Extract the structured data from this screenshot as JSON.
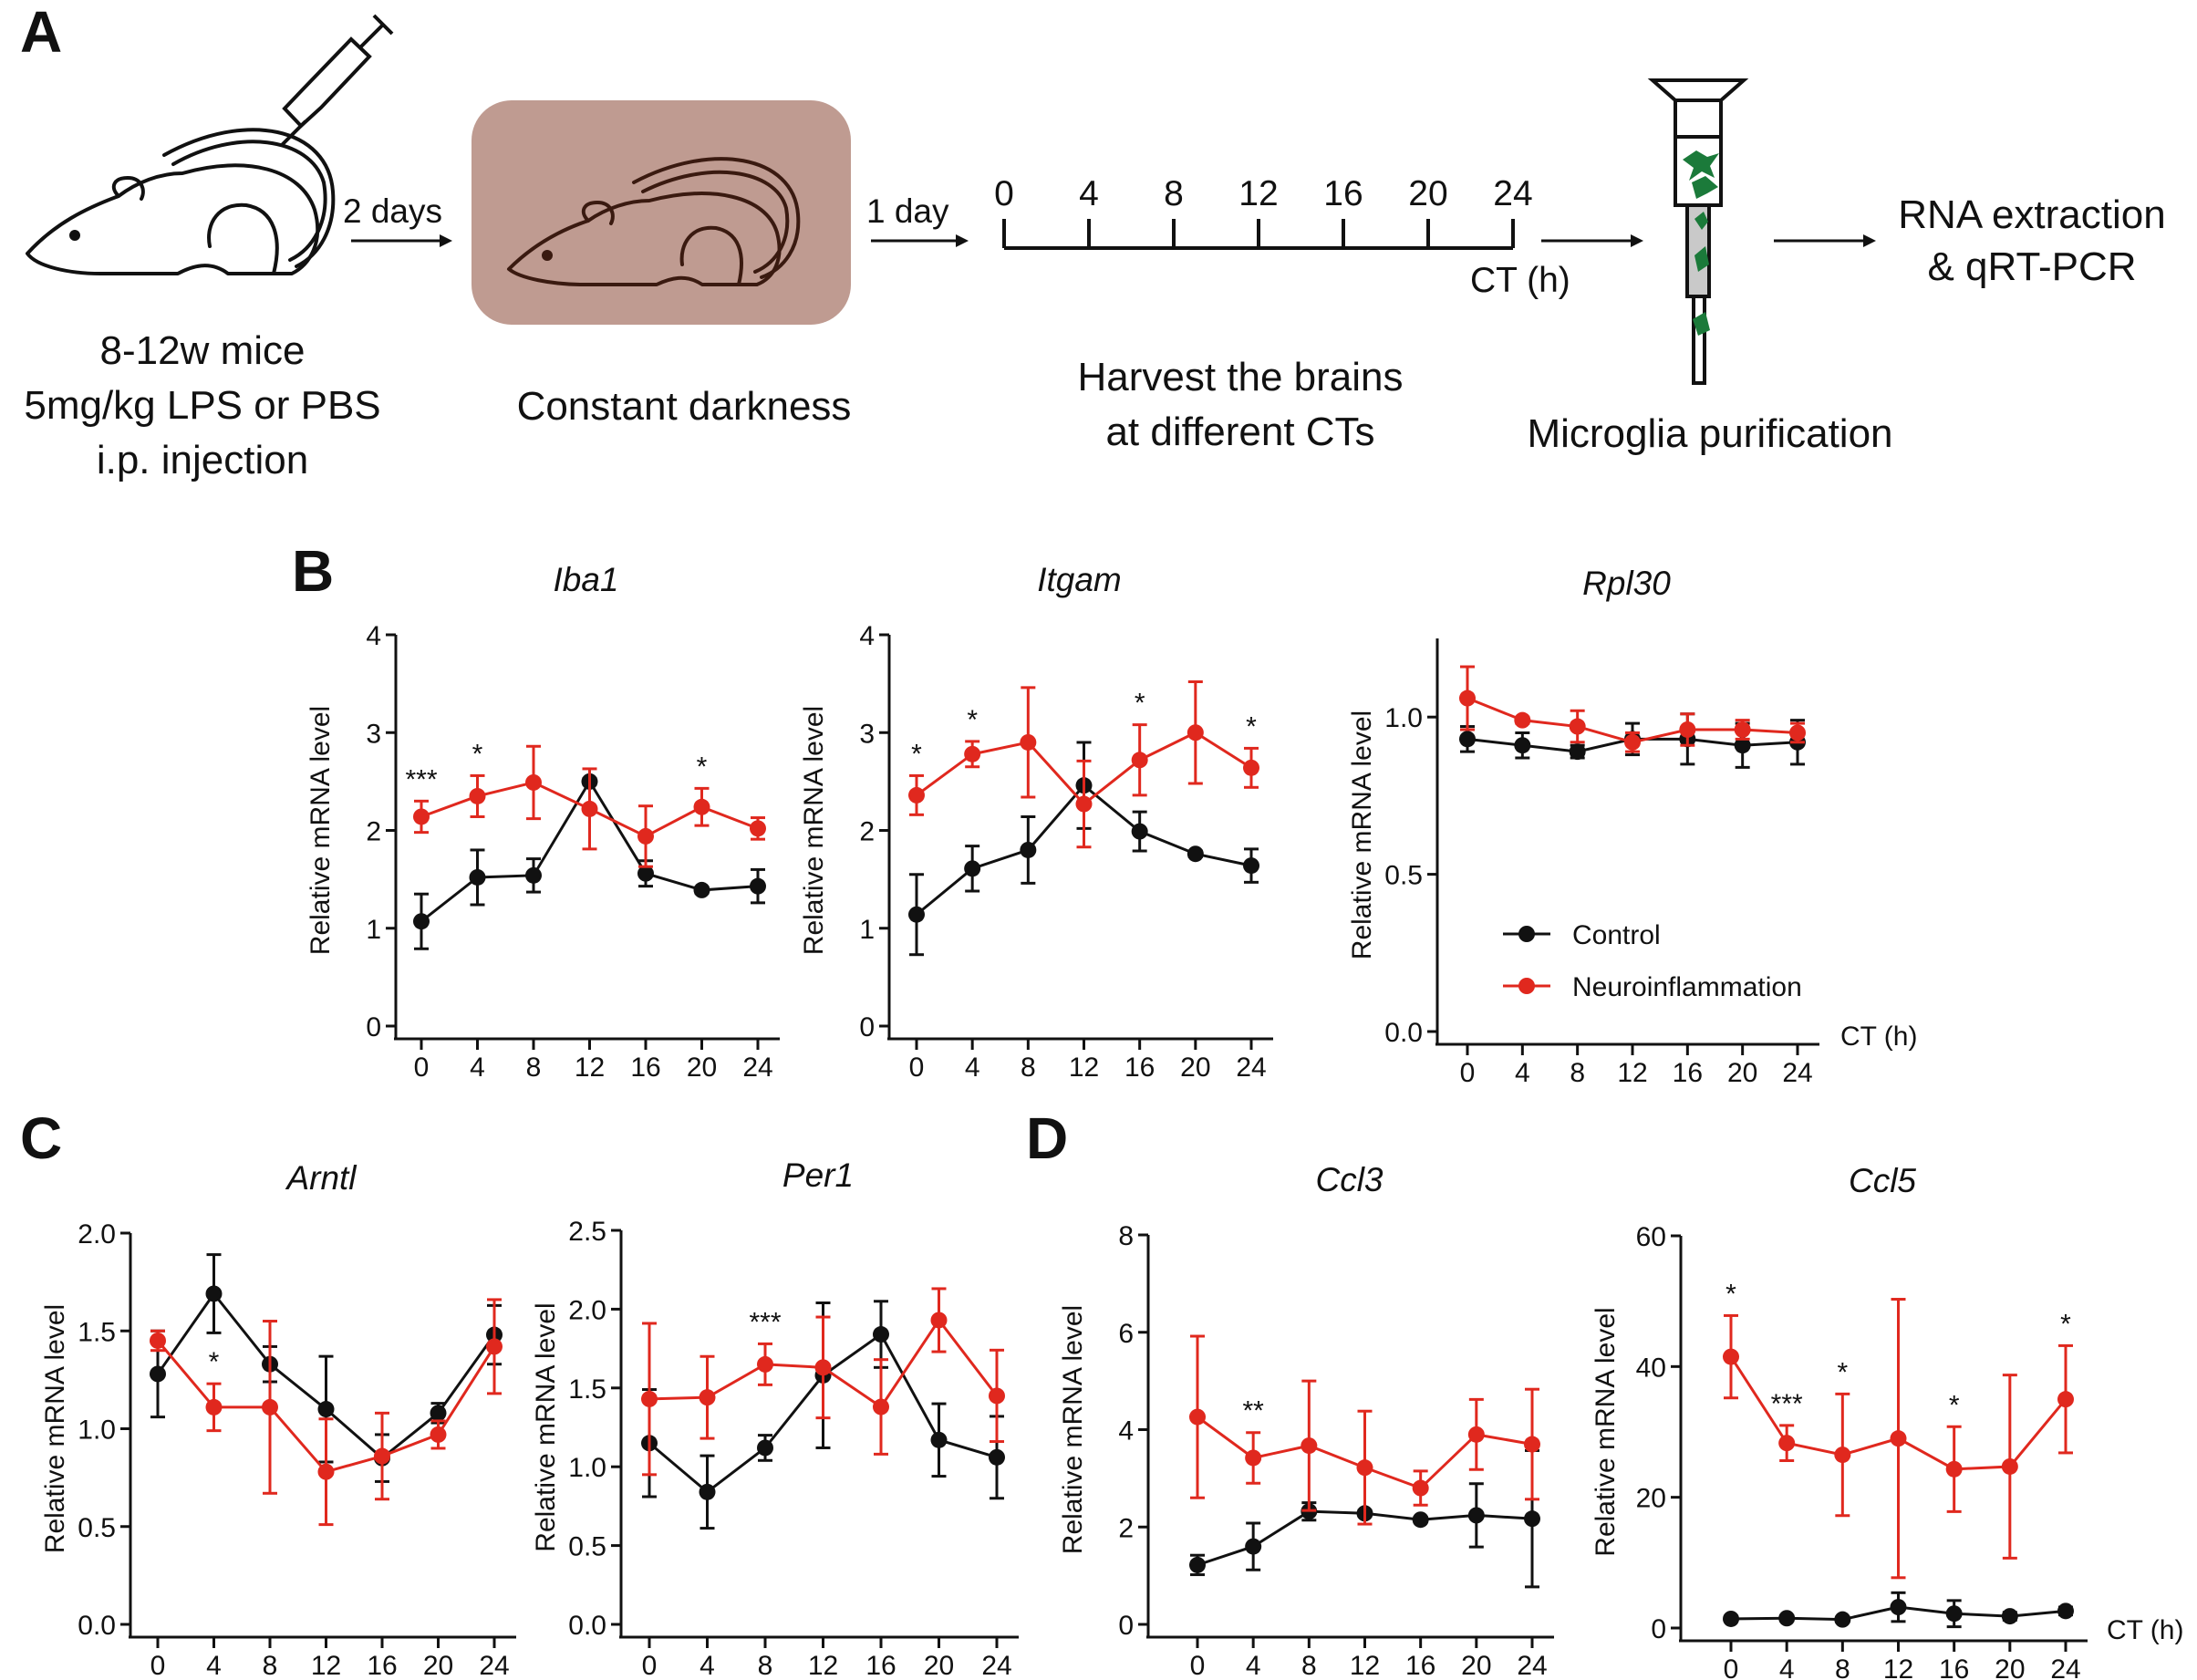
{
  "panels": {
    "a": "A",
    "b": "B",
    "c": "C",
    "d": "D"
  },
  "workflow": {
    "mouse_label": [
      "8-12w mice",
      "5mg/kg LPS or PBS",
      "i.p. injection"
    ],
    "arrow1": "2 days",
    "darkness_label": "Constant darkness",
    "arrow2": "1 day",
    "timeline_ticks": [
      "0",
      "4",
      "8",
      "12",
      "16",
      "20",
      "24"
    ],
    "timeline_unit": "CT (h)",
    "harvest_label": [
      "Harvest the brains",
      "at different CTs"
    ],
    "microglia_label": "Microglia purification",
    "rna_label": [
      "RNA extraction",
      "& qRT-PCR"
    ]
  },
  "common": {
    "ylabel": "Relative mRNA level",
    "xunit": "CT (h)",
    "legend": [
      {
        "name": "Control",
        "color": "#111111"
      },
      {
        "name": "Neuroinflammation",
        "color": "#e0281e"
      }
    ]
  },
  "chart_data": [
    {
      "id": "iba1",
      "type": "line",
      "title": "Iba1",
      "xlabel": "CT (h)",
      "ylabel": "Relative mRNA level",
      "x": [
        0,
        4,
        8,
        12,
        16,
        20,
        24
      ],
      "ylim": [
        0,
        4
      ],
      "yticks": [
        "0",
        "1",
        "2",
        "3",
        "4"
      ],
      "series": [
        {
          "name": "Control",
          "color": "#111111",
          "values": [
            1.07,
            1.52,
            1.54,
            2.5,
            1.56,
            1.39,
            1.43
          ],
          "err": [
            0.28,
            0.28,
            0.17,
            0.03,
            0.13,
            0.03,
            0.17
          ]
        },
        {
          "name": "Neuroinflammation",
          "color": "#e0281e",
          "values": [
            2.14,
            2.35,
            2.49,
            2.22,
            1.94,
            2.24,
            2.02
          ],
          "err": [
            0.16,
            0.21,
            0.37,
            0.41,
            0.31,
            0.19,
            0.11
          ]
        }
      ],
      "annotations": [
        {
          "x": 0,
          "text": "***"
        },
        {
          "x": 4,
          "text": "*"
        },
        {
          "x": 20,
          "text": "*"
        }
      ]
    },
    {
      "id": "itgam",
      "type": "line",
      "title": "Itgam",
      "xlabel": "CT (h)",
      "ylabel": "Relative mRNA level",
      "x": [
        0,
        4,
        8,
        12,
        16,
        20,
        24
      ],
      "ylim": [
        0,
        4
      ],
      "yticks": [
        "0",
        "1",
        "2",
        "3",
        "4"
      ],
      "series": [
        {
          "name": "Control",
          "color": "#111111",
          "values": [
            1.14,
            1.61,
            1.8,
            2.46,
            1.99,
            1.76,
            1.64
          ],
          "err": [
            0.41,
            0.23,
            0.34,
            0.44,
            0.2,
            0.03,
            0.17
          ]
        },
        {
          "name": "Neuroinflammation",
          "color": "#e0281e",
          "values": [
            2.36,
            2.78,
            2.9,
            2.27,
            2.72,
            3.0,
            2.64
          ],
          "err": [
            0.2,
            0.13,
            0.56,
            0.44,
            0.36,
            0.52,
            0.2
          ]
        }
      ],
      "annotations": [
        {
          "x": 0,
          "text": "*"
        },
        {
          "x": 4,
          "text": "*"
        },
        {
          "x": 16,
          "text": "*"
        },
        {
          "x": 24,
          "text": "*"
        }
      ]
    },
    {
      "id": "rpl30",
      "type": "line",
      "title": "Rpl30",
      "xlabel": "CT (h)",
      "ylabel": "Relative mRNA level",
      "x": [
        0,
        4,
        8,
        12,
        16,
        20,
        24
      ],
      "ylim": [
        0,
        1.25
      ],
      "yticks": [
        "0.0",
        "0.5",
        "1.0"
      ],
      "ytick_values": [
        0,
        0.5,
        1.0
      ],
      "series": [
        {
          "name": "Control",
          "color": "#111111",
          "values": [
            0.93,
            0.91,
            0.89,
            0.93,
            0.93,
            0.91,
            0.92
          ],
          "err": [
            0.04,
            0.04,
            0.02,
            0.05,
            0.08,
            0.07,
            0.07
          ]
        },
        {
          "name": "Neuroinflammation",
          "color": "#e0281e",
          "values": [
            1.06,
            0.99,
            0.97,
            0.92,
            0.96,
            0.96,
            0.95
          ],
          "err": [
            0.1,
            0.01,
            0.05,
            0.03,
            0.05,
            0.03,
            0.03
          ]
        }
      ],
      "annotations": []
    },
    {
      "id": "arntl",
      "type": "line",
      "title": "Arntl",
      "xlabel": "CT (h)",
      "ylabel": "Relative mRNA level",
      "x": [
        0,
        4,
        8,
        12,
        16,
        20,
        24
      ],
      "ylim": [
        0,
        2.0
      ],
      "yticks": [
        "0.0",
        "0.5",
        "1.0",
        "1.5",
        "2.0"
      ],
      "series": [
        {
          "name": "Control",
          "color": "#111111",
          "values": [
            1.28,
            1.69,
            1.33,
            1.1,
            0.85,
            1.08,
            1.48
          ],
          "err": [
            0.22,
            0.2,
            0.09,
            0.27,
            0.12,
            0.05,
            0.15
          ]
        },
        {
          "name": "Neuroinflammation",
          "color": "#e0281e",
          "values": [
            1.45,
            1.11,
            1.11,
            0.78,
            0.86,
            0.97,
            1.42
          ],
          "err": [
            0.05,
            0.12,
            0.44,
            0.27,
            0.22,
            0.07,
            0.24
          ]
        }
      ],
      "annotations": [
        {
          "x": 4,
          "text": "*"
        }
      ]
    },
    {
      "id": "per1",
      "type": "line",
      "title": "Per1",
      "xlabel": "CT (h)",
      "ylabel": "Relative mRNA level",
      "x": [
        0,
        4,
        8,
        12,
        16,
        20,
        24
      ],
      "ylim": [
        0,
        2.5
      ],
      "yticks": [
        "0.0",
        "0.5",
        "1.0",
        "1.5",
        "2.0",
        "2.5"
      ],
      "series": [
        {
          "name": "Control",
          "color": "#111111",
          "values": [
            1.15,
            0.84,
            1.12,
            1.58,
            1.84,
            1.17,
            1.06
          ],
          "err": [
            0.34,
            0.23,
            0.08,
            0.46,
            0.21,
            0.23,
            0.26
          ]
        },
        {
          "name": "Neuroinflammation",
          "color": "#e0281e",
          "values": [
            1.43,
            1.44,
            1.65,
            1.63,
            1.38,
            1.93,
            1.45
          ],
          "err": [
            0.48,
            0.26,
            0.13,
            0.32,
            0.3,
            0.2,
            0.29
          ]
        }
      ],
      "annotations": [
        {
          "x": 8,
          "text": "***"
        }
      ]
    },
    {
      "id": "ccl3",
      "type": "line",
      "title": "Ccl3",
      "xlabel": "CT (h)",
      "ylabel": "Relative mRNA level",
      "x": [
        0,
        4,
        8,
        12,
        16,
        20,
        24
      ],
      "ylim": [
        0,
        8
      ],
      "yticks": [
        "0",
        "2",
        "4",
        "6",
        "8"
      ],
      "series": [
        {
          "name": "Control",
          "color": "#111111",
          "values": [
            1.22,
            1.6,
            2.32,
            2.28,
            2.15,
            2.24,
            2.17
          ],
          "err": [
            0.2,
            0.48,
            0.18,
            0.06,
            0.05,
            0.65,
            1.4
          ]
        },
        {
          "name": "Neuroinflammation",
          "color": "#e0281e",
          "values": [
            4.26,
            3.42,
            3.67,
            3.22,
            2.8,
            3.9,
            3.7
          ],
          "err": [
            1.66,
            0.52,
            1.33,
            1.16,
            0.35,
            0.72,
            1.13
          ]
        }
      ],
      "annotations": [
        {
          "x": 4,
          "text": "**"
        }
      ]
    },
    {
      "id": "ccl5",
      "type": "line",
      "title": "Ccl5",
      "xlabel": "CT (h)",
      "ylabel": "Relative mRNA level",
      "x": [
        0,
        4,
        8,
        12,
        16,
        20,
        24
      ],
      "ylim": [
        0,
        60
      ],
      "yticks": [
        "0",
        "20",
        "40",
        "60"
      ],
      "series": [
        {
          "name": "Control",
          "color": "#111111",
          "values": [
            1.4,
            1.5,
            1.3,
            3.2,
            2.2,
            1.8,
            2.6
          ],
          "err": [
            0.4,
            0.4,
            0.4,
            2.2,
            2.0,
            0.6,
            0.6
          ]
        },
        {
          "name": "Neuroinflammation",
          "color": "#e0281e",
          "values": [
            41.5,
            28.3,
            26.5,
            29.0,
            24.3,
            24.7,
            35.0
          ],
          "err": [
            6.3,
            2.7,
            9.3,
            21.3,
            6.5,
            14.0,
            8.2
          ]
        }
      ],
      "annotations": [
        {
          "x": 0,
          "text": "*"
        },
        {
          "x": 4,
          "text": "***"
        },
        {
          "x": 8,
          "text": "*"
        },
        {
          "x": 16,
          "text": "*"
        },
        {
          "x": 24,
          "text": "*"
        }
      ]
    }
  ]
}
